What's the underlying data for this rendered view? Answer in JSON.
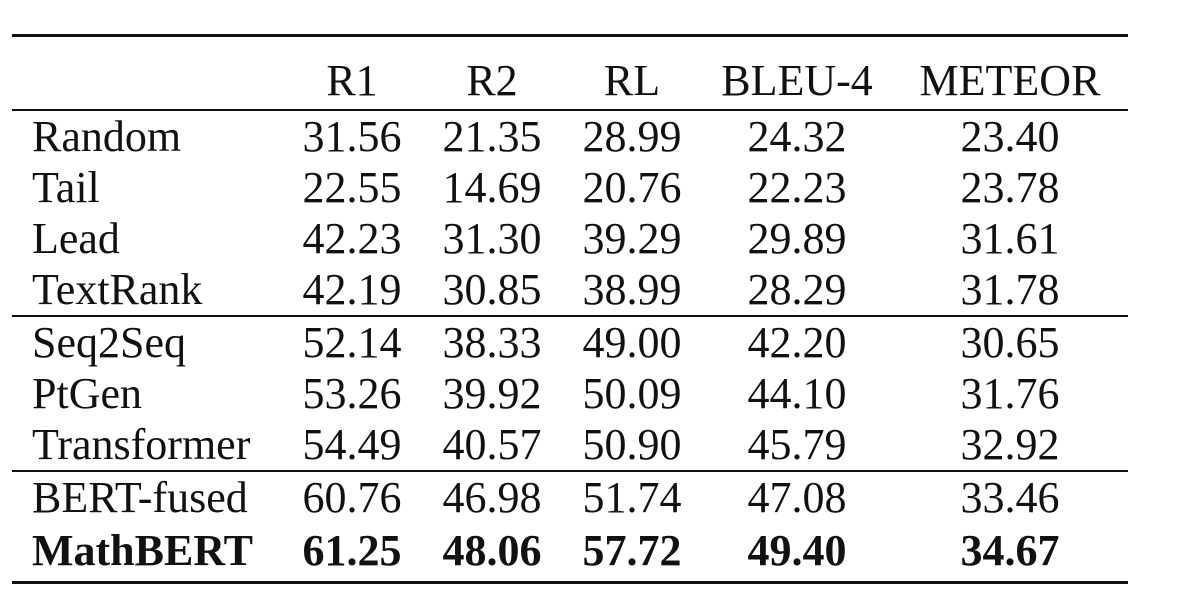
{
  "table": {
    "headers": [
      "",
      "R1",
      "R2",
      "RL",
      "BLEU-4",
      "METEOR"
    ],
    "rows": [
      {
        "method": "Random",
        "r1": "31.56",
        "r2": "21.35",
        "rl": "28.99",
        "bleu4": "24.32",
        "meteor": "23.40"
      },
      {
        "method": "Tail",
        "r1": "22.55",
        "r2": "14.69",
        "rl": "20.76",
        "bleu4": "22.23",
        "meteor": "23.78"
      },
      {
        "method": "Lead",
        "r1": "42.23",
        "r2": "31.30",
        "rl": "39.29",
        "bleu4": "29.89",
        "meteor": "31.61"
      },
      {
        "method": "TextRank",
        "r1": "42.19",
        "r2": "30.85",
        "rl": "38.99",
        "bleu4": "28.29",
        "meteor": "31.78"
      },
      {
        "method": "Seq2Seq",
        "r1": "52.14",
        "r2": "38.33",
        "rl": "49.00",
        "bleu4": "42.20",
        "meteor": "30.65"
      },
      {
        "method": "PtGen",
        "r1": "53.26",
        "r2": "39.92",
        "rl": "50.09",
        "bleu4": "44.10",
        "meteor": "31.76"
      },
      {
        "method": "Transformer",
        "r1": "54.49",
        "r2": "40.57",
        "rl": "50.90",
        "bleu4": "45.79",
        "meteor": "32.92"
      },
      {
        "method": "BERT-fused",
        "r1": "60.76",
        "r2": "46.98",
        "rl": "51.74",
        "bleu4": "47.08",
        "meteor": "33.46"
      },
      {
        "method": "MathBERT",
        "r1": "61.25",
        "r2": "48.06",
        "rl": "57.72",
        "bleu4": "49.40",
        "meteor": "34.67"
      }
    ]
  }
}
